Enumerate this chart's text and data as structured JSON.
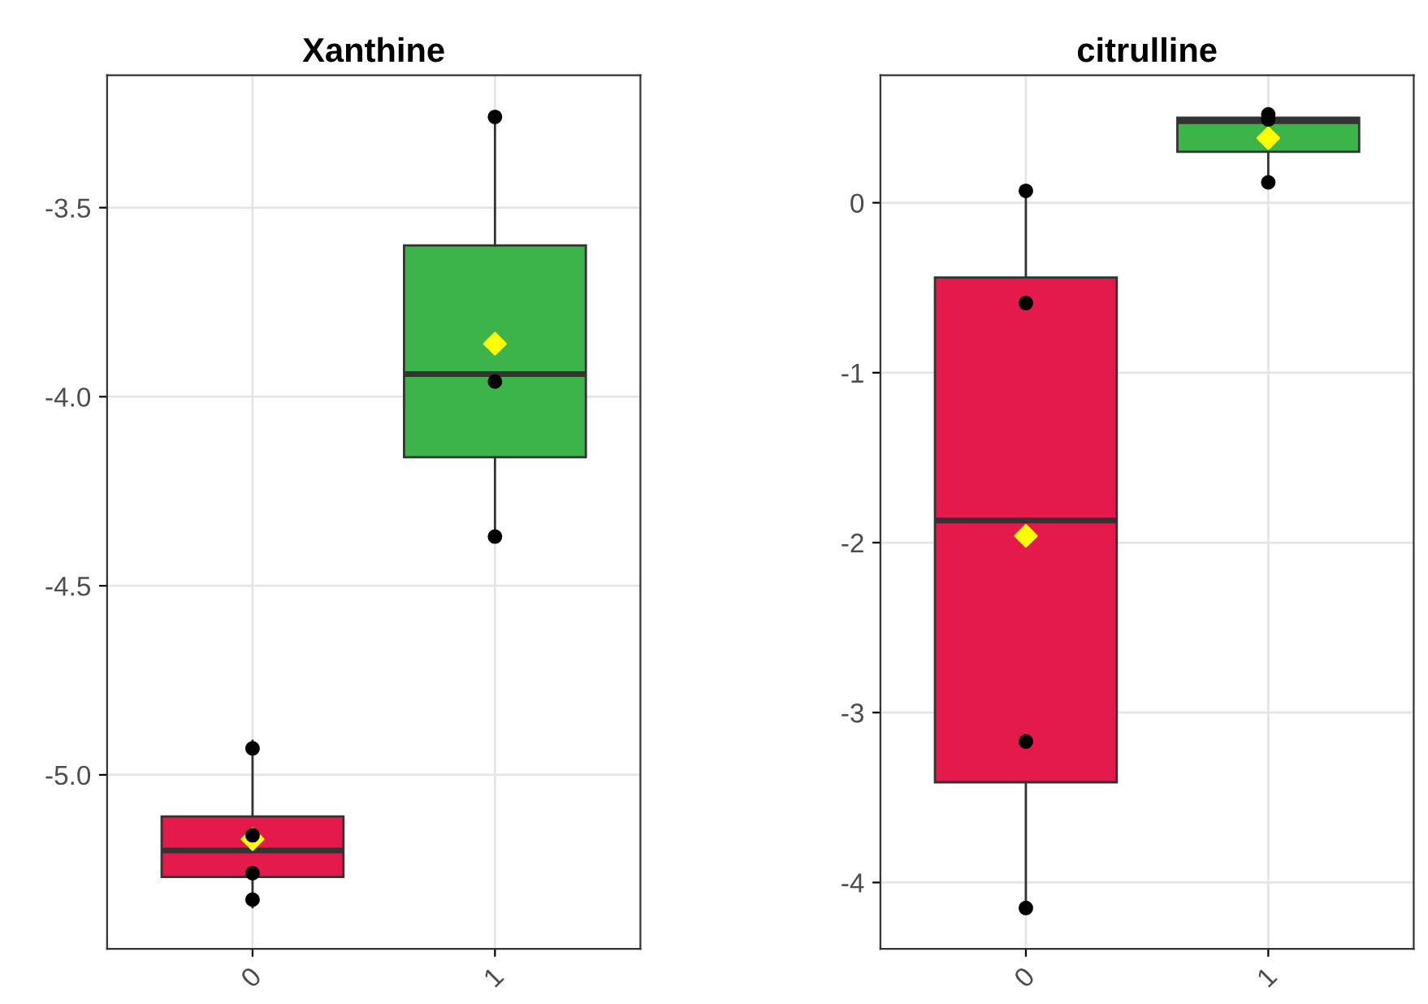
{
  "chart_data": [
    {
      "type": "box",
      "title": "Xanthine",
      "categories": [
        "0",
        "1"
      ],
      "colors": [
        "#e31a4b",
        "#3cb44a"
      ],
      "boxes": [
        {
          "low": -5.35,
          "q1": -5.27,
          "median": -5.2,
          "q3": -5.11,
          "high": -4.91
        },
        {
          "low": -4.37,
          "q1": -4.16,
          "median": -3.94,
          "q3": -3.6,
          "high": -3.26
        }
      ],
      "series": [
        {
          "type": "scatter",
          "color": "#ffff00",
          "marker": "diamond",
          "x": [
            "0",
            "1"
          ],
          "values": [
            -5.17,
            -3.86
          ]
        },
        {
          "type": "scatter",
          "color": "#000000",
          "marker": "circle",
          "x": [
            "0",
            "0",
            "0",
            "0",
            "1",
            "1",
            "1"
          ],
          "values": [
            -4.93,
            -5.26,
            -5.33,
            -5.16,
            -3.26,
            -4.37,
            -3.96
          ]
        }
      ],
      "ylim": [
        -5.46,
        -3.15
      ],
      "yticks": [
        {
          "value": -5,
          "label": "-5.0"
        },
        -4.5,
        {
          "value": -4,
          "label": "-4.0"
        },
        -3.5
      ],
      "grid": true
    },
    {
      "type": "box",
      "title": "citrulline",
      "categories": [
        "0",
        "1"
      ],
      "colors": [
        "#e31a4b",
        "#3cb44a"
      ],
      "boxes": [
        {
          "low": -4.14,
          "q1": -3.41,
          "median": -1.87,
          "q3": -0.44,
          "high": 0.05
        },
        {
          "low": 0.12,
          "q1": 0.3,
          "median": 0.48,
          "q3": 0.5,
          "high": 0.52
        }
      ],
      "series": [
        {
          "type": "scatter",
          "color": "#ffff00",
          "marker": "diamond",
          "x": [
            "0",
            "1"
          ],
          "values": [
            -1.96,
            0.38
          ]
        },
        {
          "type": "scatter",
          "color": "#000000",
          "marker": "circle",
          "x": [
            "0",
            "0",
            "0",
            "0",
            "1",
            "1",
            "1"
          ],
          "values": [
            -0.59,
            -3.17,
            -4.15,
            0.07,
            0.12,
            0.49,
            0.52
          ]
        }
      ],
      "ylim": [
        -4.39,
        0.75
      ],
      "yticks": [
        -4,
        -3,
        -2,
        -1,
        0
      ],
      "grid": true
    }
  ]
}
